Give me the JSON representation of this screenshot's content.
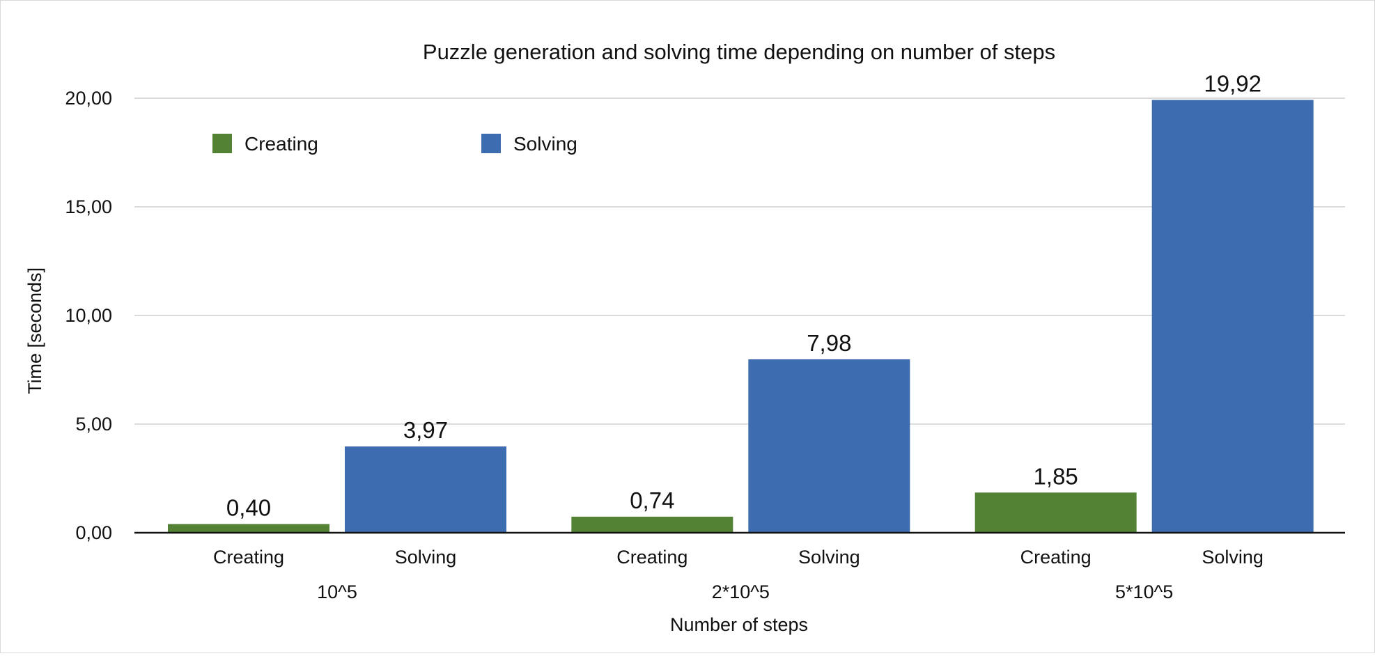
{
  "chart_data": {
    "type": "bar",
    "title": "Puzzle generation and solving time depending on number of steps",
    "xlabel": "Number of steps",
    "ylabel": "Time [seconds]",
    "ylim": [
      0,
      20
    ],
    "yticks": [
      0,
      5,
      10,
      15,
      20
    ],
    "ytick_labels": [
      "0,00",
      "5,00",
      "10,00",
      "15,00",
      "20,00"
    ],
    "grid": true,
    "legend_position": "top-left",
    "groups": [
      "10^5",
      "2*10^5",
      "5*10^5"
    ],
    "series": [
      {
        "name": "Creating",
        "color": "#548235",
        "values": [
          0.4,
          0.74,
          1.85
        ],
        "value_labels": [
          "0,40",
          "0,74",
          "1,85"
        ]
      },
      {
        "name": "Solving",
        "color": "#3d6db0",
        "values": [
          3.97,
          7.98,
          19.92
        ],
        "value_labels": [
          "3,97",
          "7,98",
          "19,92"
        ]
      }
    ]
  }
}
